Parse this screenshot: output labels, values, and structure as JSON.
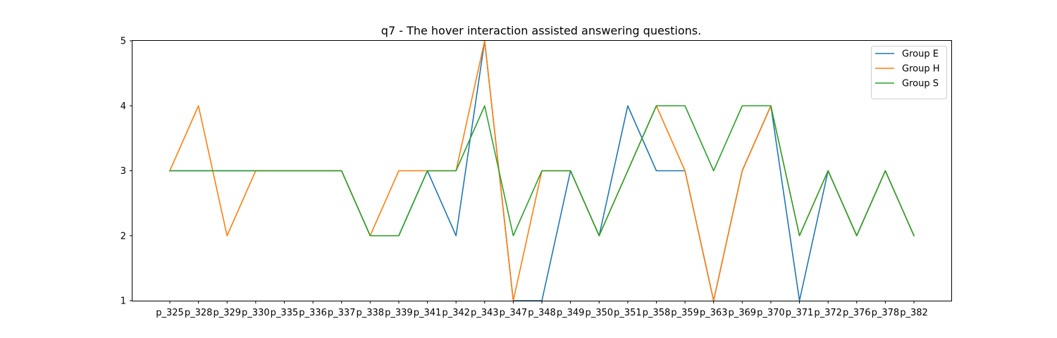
{
  "chart_data": {
    "type": "line",
    "title": "q7 - The hover interaction assisted answering questions.",
    "xlabel": "",
    "ylabel": "",
    "ylim": [
      1,
      5
    ],
    "yticks": [
      1,
      2,
      3,
      4,
      5
    ],
    "grid": false,
    "legend_position": "top-right",
    "categories": [
      "p_325",
      "p_328",
      "p_329",
      "p_330",
      "p_335",
      "p_336",
      "p_337",
      "p_338",
      "p_339",
      "p_341",
      "p_342",
      "p_343",
      "p_347",
      "p_348",
      "p_349",
      "p_350",
      "p_351",
      "p_358",
      "p_359",
      "p_363",
      "p_369",
      "p_370",
      "p_371",
      "p_372",
      "p_376",
      "p_378",
      "p_382"
    ],
    "series": [
      {
        "name": "Group E",
        "color": "#1f77b4",
        "values": [
          3,
          3,
          3,
          3,
          3,
          3,
          3,
          2,
          2,
          3,
          2,
          5,
          1,
          1,
          3,
          2,
          4,
          3,
          3,
          1,
          3,
          4,
          1,
          3,
          2,
          3,
          2
        ]
      },
      {
        "name": "Group H",
        "color": "#ff7f0e",
        "values": [
          3,
          4,
          2,
          3,
          3,
          3,
          3,
          2,
          3,
          3,
          3,
          5,
          1,
          3,
          3,
          2,
          3,
          4,
          3,
          1,
          3,
          4,
          2,
          3,
          2,
          3,
          2
        ]
      },
      {
        "name": "Group S",
        "color": "#2ca02c",
        "values": [
          3,
          3,
          3,
          3,
          3,
          3,
          3,
          2,
          2,
          3,
          3,
          4,
          2,
          3,
          3,
          2,
          3,
          4,
          4,
          3,
          4,
          4,
          2,
          3,
          2,
          3,
          2
        ]
      }
    ]
  }
}
